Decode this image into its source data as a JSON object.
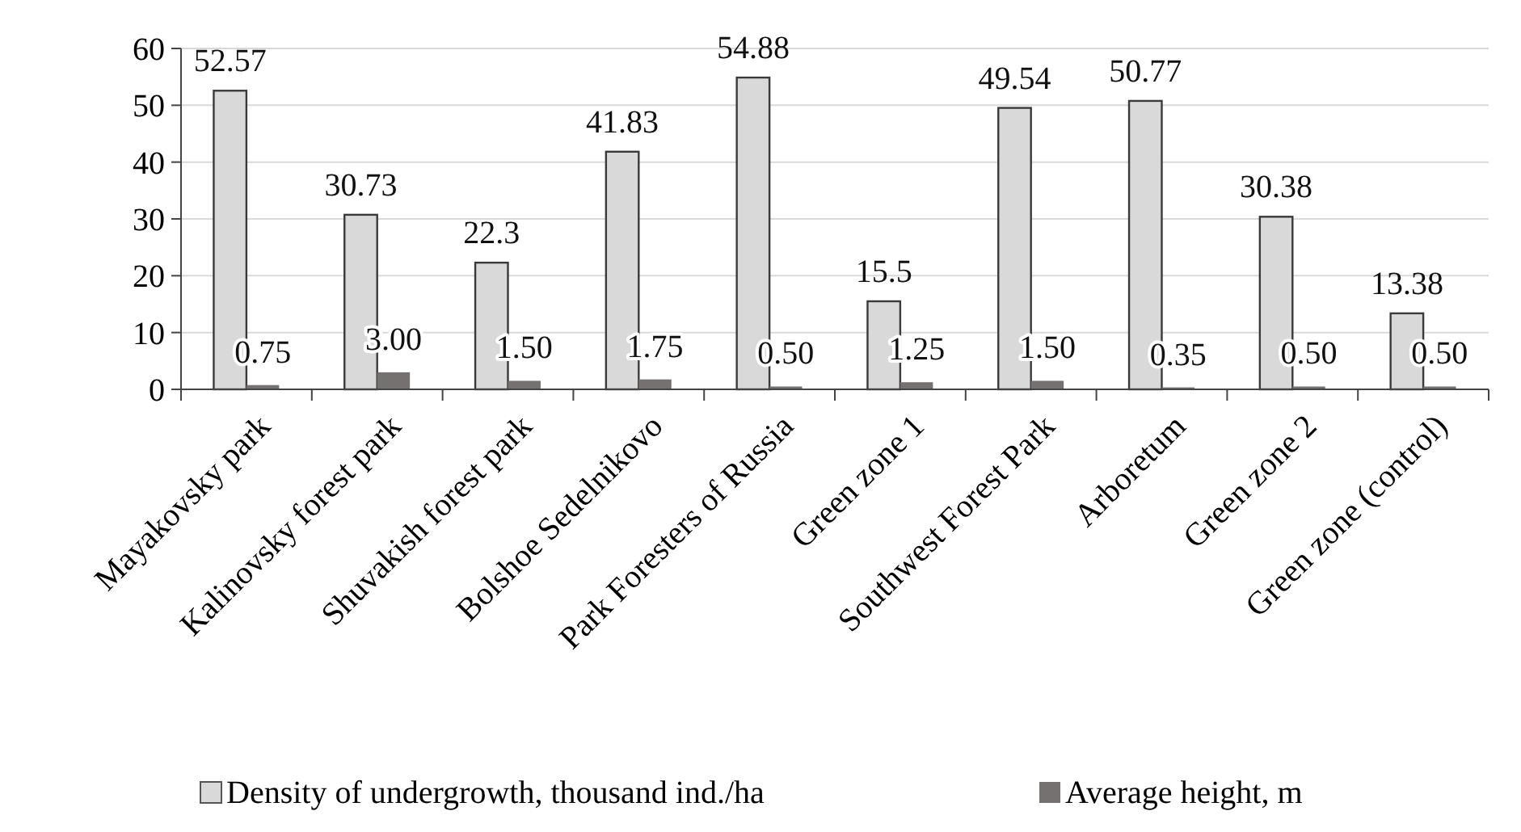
{
  "chart_data": {
    "type": "bar",
    "categories": [
      "Mayakovsky park",
      "Kalinovsky forest park",
      "Shuvakish forest park",
      "Bolshoe Sedelnikovo",
      "Park Foresters of Russia",
      "Green zone 1",
      "Southwest Forest Park",
      "Arboretum",
      "Green zone 2",
      "Green zone (control)"
    ],
    "series": [
      {
        "name": "Density of undergrowth, thousand ind./ha",
        "color": "#d9d9d9",
        "values": [
          52.57,
          30.73,
          22.3,
          41.83,
          54.88,
          15.5,
          49.54,
          50.77,
          30.38,
          13.38
        ],
        "value_labels": [
          "52.57",
          "30.73",
          "22.3",
          "41.83",
          "54.88",
          "15.5",
          "49.54",
          "50.77",
          "30.38",
          "13.38"
        ]
      },
      {
        "name": "Average height, m",
        "color": "#767171",
        "values": [
          0.75,
          3.0,
          1.5,
          1.75,
          0.5,
          1.25,
          1.5,
          0.35,
          0.5,
          0.5
        ],
        "value_labels": [
          "0.75",
          "3.00",
          "1.50",
          "1.75",
          "0.50",
          "1.25",
          "1.50",
          "0.35",
          "0.50",
          "0.50"
        ]
      }
    ],
    "ylim": [
      0,
      60
    ],
    "yticks": [
      0,
      10,
      20,
      30,
      40,
      50,
      60
    ],
    "grid": "y",
    "legend": "bottom"
  }
}
